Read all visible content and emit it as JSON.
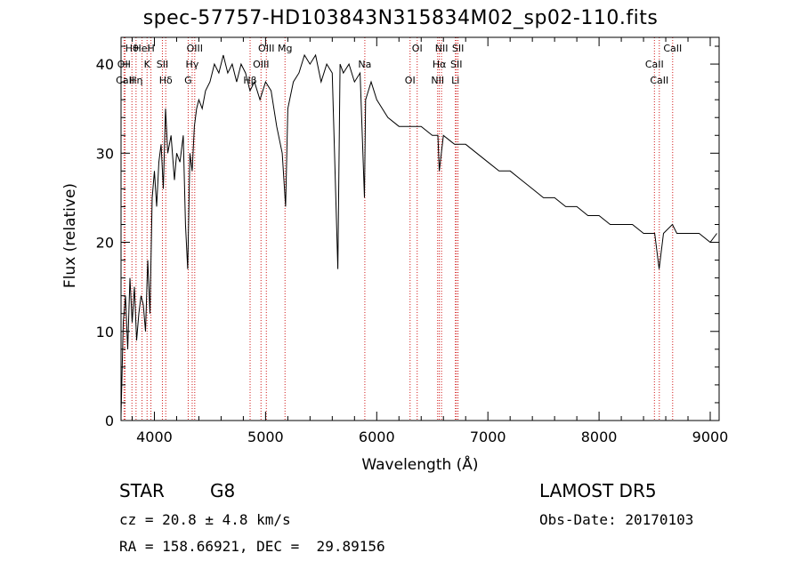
{
  "chart_data": {
    "type": "line",
    "title": "spec-57757-HD103843N315834M02_sp02-110.fits",
    "xlabel": "Wavelength (Å)",
    "ylabel": "Flux (relative)",
    "xlim": [
      3700,
      9080
    ],
    "ylim": [
      0,
      43
    ],
    "xticks": [
      4000,
      5000,
      6000,
      7000,
      8000,
      9000
    ],
    "yticks": [
      0,
      10,
      20,
      30,
      40
    ],
    "grid": false,
    "series": [
      {
        "x": [
          3700,
          3720,
          3740,
          3760,
          3780,
          3800,
          3820,
          3840,
          3860,
          3880,
          3900,
          3920,
          3940,
          3960,
          3980,
          4000,
          4020,
          4040,
          4060,
          4080,
          4100,
          4120,
          4150,
          4180,
          4200,
          4230,
          4260,
          4280,
          4300,
          4320,
          4340,
          4360,
          4380,
          4400,
          4430,
          4460,
          4500,
          4540,
          4580,
          4620,
          4660,
          4700,
          4740,
          4780,
          4820,
          4860,
          4900,
          4950,
          5000,
          5050,
          5100,
          5150,
          5180,
          5200,
          5250,
          5300,
          5350,
          5400,
          5450,
          5500,
          5550,
          5600,
          5650,
          5670,
          5700,
          5750,
          5800,
          5850,
          5890,
          5900,
          5950,
          6000,
          6100,
          6200,
          6300,
          6400,
          6500,
          6550,
          6563,
          6600,
          6700,
          6800,
          6900,
          7000,
          7100,
          7200,
          7300,
          7400,
          7500,
          7600,
          7700,
          7800,
          7900,
          8000,
          8100,
          8200,
          8300,
          8400,
          8500,
          8540,
          8580,
          8660,
          8700,
          8800,
          8900,
          9000,
          9060
        ],
        "y": [
          0.5,
          11,
          14,
          8,
          16,
          11,
          15,
          9,
          12,
          14,
          13,
          10,
          18,
          12,
          25,
          28,
          24,
          29,
          31,
          26,
          35,
          30,
          32,
          27,
          30,
          29,
          32,
          22,
          17,
          30,
          28,
          33,
          35,
          36,
          35,
          37,
          38,
          40,
          39,
          41,
          39,
          40,
          38,
          40,
          39,
          37,
          38,
          36,
          38,
          37,
          33,
          30,
          24,
          35,
          38,
          39,
          41,
          40,
          41,
          38,
          40,
          39,
          17,
          40,
          39,
          40,
          38,
          39,
          25,
          36,
          38,
          36,
          34,
          33,
          33,
          33,
          32,
          32,
          28,
          32,
          31,
          31,
          30,
          29,
          28,
          28,
          27,
          26,
          25,
          25,
          24,
          24,
          23,
          23,
          22,
          22,
          22,
          21,
          21,
          17,
          21,
          22,
          21,
          21,
          21,
          20,
          21
        ]
      }
    ],
    "line_markers": [
      {
        "label": "Hθ",
        "wave": 3798
      },
      {
        "label": "OII",
        "wave": 3727
      },
      {
        "label": "CaII",
        "wave": 3737
      },
      {
        "label": "HeI",
        "wave": 3889
      },
      {
        "label": "K",
        "wave": 3934
      },
      {
        "label": "Hη",
        "wave": 3835
      },
      {
        "label": "H",
        "wave": 3969
      },
      {
        "label": "SII",
        "wave": 4072
      },
      {
        "label": "Hδ",
        "wave": 4102
      },
      {
        "label": "OIII",
        "wave": 4363
      },
      {
        "label": "Hγ",
        "wave": 4340
      },
      {
        "label": "G",
        "wave": 4304
      },
      {
        "label": "OIII",
        "wave": 5007
      },
      {
        "label": "OIII",
        "wave": 4959
      },
      {
        "label": "Hβ",
        "wave": 4861
      },
      {
        "label": "Mg",
        "wave": 5175
      },
      {
        "label": "Na",
        "wave": 5893
      },
      {
        "label": "OI",
        "wave": 6300
      },
      {
        "label": "OI",
        "wave": 6364
      },
      {
        "label": "Hα",
        "wave": 6563
      },
      {
        "label": "NII",
        "wave": 6548
      },
      {
        "label": "NII",
        "wave": 6583
      },
      {
        "label": "SII",
        "wave": 6716
      },
      {
        "label": "Li",
        "wave": 6708
      },
      {
        "label": "SII",
        "wave": 6731
      },
      {
        "label": "CaII",
        "wave": 8498
      },
      {
        "label": "CaII",
        "wave": 8542
      },
      {
        "label": "CaII",
        "wave": 8662
      }
    ]
  },
  "info": {
    "object_type": "STAR",
    "subclass": "G8",
    "survey": "LAMOST DR5",
    "cz": "cz = 20.8 ± 4.8 km/s",
    "obs_date": "Obs-Date: 20170103",
    "coords": "RA = 158.66921, DEC =  29.89156"
  },
  "colors": {
    "spectrum": "#000000",
    "markers": "#d01818"
  }
}
